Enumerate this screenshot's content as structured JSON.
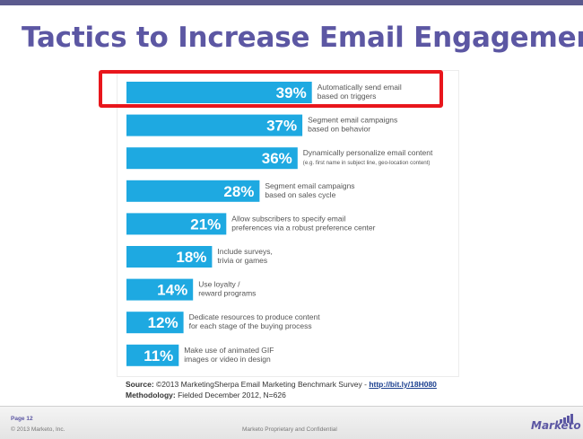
{
  "slide": {
    "title": "Tactics to Increase Email Engagement"
  },
  "chart_data": {
    "type": "bar",
    "orientation": "horizontal",
    "categories": [
      [
        "Automatically send email",
        "based on triggers"
      ],
      [
        "Segment email campaigns",
        "based on behavior"
      ],
      [
        "Dynamically personalize email content",
        "(e.g. first name in subject line, geo-location content)"
      ],
      [
        "Segment email campaigns",
        "based on sales cycle"
      ],
      [
        "Allow subscribers to specify email",
        "preferences via a robust preference center"
      ],
      [
        "Include surveys,",
        "trivia or games"
      ],
      [
        "Use loyalty /",
        "reward programs"
      ],
      [
        "Dedicate resources to produce content",
        "for each stage of the buying process"
      ],
      [
        "Make use of animated GIF",
        "images or video in design"
      ]
    ],
    "values": [
      39,
      37,
      36,
      28,
      21,
      18,
      14,
      12,
      11
    ],
    "value_labels": [
      "39%",
      "37%",
      "36%",
      "28%",
      "21%",
      "18%",
      "14%",
      "12%",
      "11%"
    ],
    "bar_color": "#1ea9e1",
    "highlight_color": "#e8161c",
    "highlighted_index": 0
  },
  "source": {
    "label": "Source:",
    "text": "©2013 MarketingSherpa Email Marketing Benchmark Survey - ",
    "url_text": "http://bit.ly/18H080",
    "methodology_label": "Methodology:",
    "methodology_text": "Fielded December 2012, N=626"
  },
  "footer": {
    "page": "Page 12",
    "copyright": "© 2013 Marketo, Inc.",
    "confidential": "Marketo Proprietary and Confidential",
    "brand": "Marketo"
  }
}
